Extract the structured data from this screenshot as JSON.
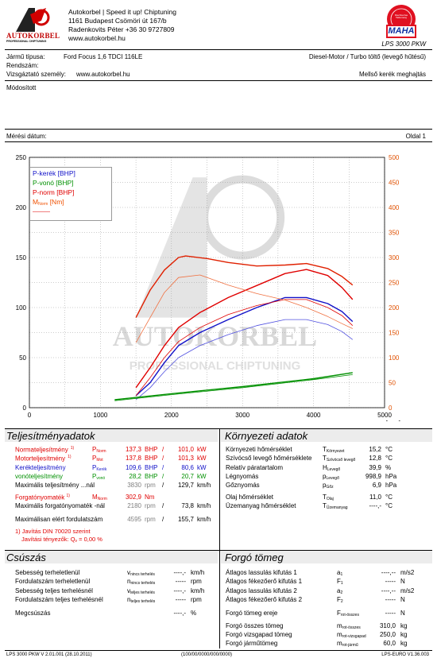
{
  "company": {
    "line1": "Autokorbel | Speed it up! Chiptuning",
    "line2": "1161 Budapest Csömöri út 167/b",
    "line3": "Radenkovits Péter +36 30 9727809",
    "line4": "www.autokorbel.hu",
    "logo_text": "AUTOKORBEL",
    "logo_sub": "PROFESSIONAL CHIPTUNING"
  },
  "brand": {
    "seal_text": "MAHA",
    "seal_ring": "Maschinenbau Haldenwang",
    "model": "LPS 3000 PKW"
  },
  "vehicle": {
    "type_label": "Jármű típusa:",
    "type_value": "Ford Focus 1,6 TDCI 116LE",
    "engine": "Diesel-Motor / Turbo töltő (levegő hűtésű)",
    "plate_label": "Rendszám:",
    "tester_label": "Vizsgáztató személy:",
    "tester_value": "www.autokorbel.hu",
    "drive": "Mellső kerék meghajtás",
    "modified": "Módosított",
    "date_label": "Mérési dátum:",
    "page": "Oldal 1"
  },
  "chart_data": {
    "type": "line",
    "xlabel": "n [rpm]",
    "xlim": [
      0,
      5000
    ],
    "xticks": [
      "0",
      "1000",
      "2000",
      "3000",
      "4000",
      "5000"
    ],
    "ylim_left": [
      0,
      250
    ],
    "yticks_left": [
      "0",
      "50",
      "100",
      "150",
      "200",
      "250"
    ],
    "ylim_right": [
      0,
      500
    ],
    "yticks_right": [
      "0",
      "50",
      "100",
      "150",
      "200",
      "250",
      "300",
      "350",
      "400",
      "450",
      "500"
    ],
    "legend": [
      {
        "label": "P-kerék [BHP]",
        "color": "#1010c8"
      },
      {
        "label": "P-vonó [BHP]",
        "color": "#009000"
      },
      {
        "label": "P-norm [BHP]",
        "color": "#e00000"
      },
      {
        "label": "M",
        "sub": "Norm",
        "unit": " [Nm]",
        "color": "#f05000"
      }
    ],
    "series": [
      {
        "name": "P-kerék [BHP]",
        "color": "#1010c8",
        "axis": "left",
        "x": [
          1500,
          1700,
          1900,
          2100,
          2400,
          2800,
          3200,
          3600,
          3900,
          4200,
          4400,
          4550
        ],
        "y": [
          12,
          25,
          45,
          62,
          75,
          88,
          100,
          110,
          110,
          104,
          96,
          86
        ]
      },
      {
        "name": "P-kerék [BHP] (base)",
        "color": "#5050e0",
        "axis": "left",
        "x": [
          1500,
          1700,
          1900,
          2100,
          2400,
          2800,
          3200,
          3600,
          3900,
          4200,
          4400,
          4550
        ],
        "y": [
          8,
          20,
          36,
          50,
          62,
          73,
          82,
          88,
          88,
          83,
          76,
          68
        ]
      },
      {
        "name": "P-vonó [BHP]",
        "color": "#009000",
        "axis": "left",
        "x": [
          1200,
          2000,
          3000,
          4000,
          4550
        ],
        "y": [
          8,
          14,
          21,
          29,
          35
        ]
      },
      {
        "name": "P-vonó [BHP] (base)",
        "color": "#009000",
        "axis": "left",
        "x": [
          1200,
          2000,
          3000,
          4000,
          4550
        ],
        "y": [
          7,
          13,
          20,
          28,
          33
        ]
      },
      {
        "name": "P-norm [BHP]",
        "color": "#e00000",
        "axis": "left",
        "x": [
          1500,
          1700,
          1900,
          2100,
          2400,
          2800,
          3200,
          3600,
          3900,
          4200,
          4400,
          4550
        ],
        "y": [
          20,
          40,
          62,
          80,
          95,
          110,
          122,
          134,
          138,
          132,
          120,
          108
        ]
      },
      {
        "name": "P-norm [BHP] (base)",
        "color": "#e00000",
        "axis": "left",
        "x": [
          1500,
          1700,
          1900,
          2100,
          2400,
          2800,
          3200,
          3600,
          3900,
          4200,
          4400,
          4550
        ],
        "y": [
          12,
          30,
          50,
          66,
          80,
          93,
          102,
          108,
          108,
          100,
          92,
          82
        ]
      },
      {
        "name": "M Norm [Nm]",
        "color": "#e02000",
        "axis": "right",
        "x": [
          1500,
          1700,
          1900,
          2100,
          2200,
          2500,
          2800,
          3200,
          3600,
          3900,
          4200,
          4400,
          4550
        ],
        "y": [
          180,
          235,
          275,
          300,
          303,
          298,
          290,
          283,
          285,
          288,
          278,
          262,
          245
        ]
      },
      {
        "name": "M Norm [Nm] (base)",
        "color": "#f07040",
        "axis": "right",
        "x": [
          1500,
          1700,
          1900,
          2100,
          2400,
          2800,
          3200,
          3600,
          3900,
          4200,
          4400,
          4550
        ],
        "y": [
          130,
          180,
          230,
          260,
          265,
          245,
          228,
          215,
          200,
          182,
          168,
          158
        ]
      }
    ]
  },
  "power": {
    "title": "Teljesítményadatok",
    "rows": [
      {
        "label": "Normateljesítmény",
        "sup": "1)",
        "sym": "P",
        "sub": "Norm",
        "v1": "137,3",
        "u1": "BHP",
        "v2": "101,0",
        "u2": "kW",
        "color": "red"
      },
      {
        "label": "Motorteljesítmény",
        "sup": "1)",
        "sym": "P",
        "sub": "Mot",
        "v1": "137,8",
        "u1": "BHP",
        "v2": "101,3",
        "u2": "kW",
        "color": "red"
      },
      {
        "label": "Kerékteljesítmény",
        "sup": "",
        "sym": "P",
        "sub": "Kerék",
        "v1": "109,6",
        "u1": "BHP",
        "v2": "80,6",
        "u2": "kW",
        "color": "blue"
      },
      {
        "label": "vonóteljesítmény",
        "sup": "",
        "sym": "P",
        "sub": "vonó",
        "v1": "28,2",
        "u1": "BHP",
        "v2": "20,7",
        "u2": "kW",
        "color": "green"
      },
      {
        "label": "Maximális teljesítmény ...nál",
        "sup": "",
        "sym": "",
        "sub": "",
        "v1": "3830",
        "u1": "rpm",
        "v2": "129,7",
        "u2": "km/h",
        "color": "black"
      }
    ],
    "torque": {
      "label": "Forgatónyomaték",
      "sup": "1)",
      "sym": "M",
      "sub": "Norm",
      "v1": "302,9",
      "u1": "Nm"
    },
    "torque_rows": [
      {
        "label": "Maximális forgatónyomaték -nál",
        "v1": "2180",
        "u1": "rpm",
        "v2": "73,8",
        "u2": "km/h"
      },
      {
        "label": "Maximálisan elért fordulatszám",
        "v1": "4595",
        "u1": "rpm",
        "v2": "155,7",
        "u2": "km/h"
      }
    ],
    "note1": "1) Javítás DIN 70020 szerint",
    "note2": "Javítási tényezők: Q",
    "note2_sub": "v",
    "note2_value": "=     0,00 %"
  },
  "env": {
    "title": "Környezeti adatok",
    "rows": [
      {
        "label": "Környezeti hőmérséklet",
        "sym": "T",
        "sub": "Környezet",
        "v": "15,2",
        "u": "°C"
      },
      {
        "label": "Szívócső levegő hőmérséklete",
        "sym": "T",
        "sub": "Szívócső levegő",
        "v": "12,8",
        "u": "°C"
      },
      {
        "label": "Relatív páratartalom",
        "sym": "H",
        "sub": "Levegő",
        "v": "39,9",
        "u": "%"
      },
      {
        "label": "Légnyomás",
        "sym": "p",
        "sub": "Levegő",
        "v": "998,9",
        "u": "hPa"
      },
      {
        "label": "Gőznyomás",
        "sym": "p",
        "sub": "Gőz",
        "v": "6,9",
        "u": "hPa"
      },
      {
        "label": "Olaj hőmérséklet",
        "sym": "T",
        "sub": "Olaj",
        "v": "11,0",
        "u": "°C"
      },
      {
        "label": "Üzemanyag hőmérséklet",
        "sym": "T",
        "sub": "Üzemanyag",
        "v": "----,-",
        "u": "°C"
      }
    ]
  },
  "slip": {
    "title": "Csúszás",
    "rows": [
      {
        "label": "Sebesség terheletlenül",
        "sym": "v",
        "sub": "nincs terhelés",
        "v": "----,-",
        "u": "km/h"
      },
      {
        "label": "Fordulatszám terheletlenül",
        "sym": "n",
        "sub": "nincs terhelés",
        "v": "-----",
        "u": "rpm"
      },
      {
        "label": "Sebesség teljes terhelésnél",
        "sym": "v",
        "sub": "teljes terhelés",
        "v": "----,-",
        "u": "km/h"
      },
      {
        "label": "Fordulatszám teljes terhelésnél",
        "sym": "n",
        "sub": "teljes terhelés",
        "v": "-----",
        "u": "rpm"
      },
      {
        "label": "Megcsúszás",
        "sym": "",
        "sub": "",
        "v": "----,-",
        "u": "%"
      }
    ]
  },
  "mass": {
    "title": "Forgó tömeg",
    "rows": [
      {
        "label": "Átlagos lassulás kifutás 1",
        "sym": "a",
        "sub": "1",
        "v": "----,--",
        "u": "m/s2"
      },
      {
        "label": "Átlagos fékezőerő kifutás 1",
        "sym": "F",
        "sub": "1",
        "v": "-----",
        "u": "N"
      },
      {
        "label": "Átlagos lassulás kifutás 2",
        "sym": "a",
        "sub": "2",
        "v": "----,--",
        "u": "m/s2"
      },
      {
        "label": "Átlagos fékezőerő kifutás 2",
        "sym": "F",
        "sub": "2",
        "v": "-----",
        "u": "N"
      },
      {
        "label": "Forgó tömeg ereje",
        "sym": "F",
        "sub": "rot-összes",
        "v": "-----",
        "u": "N"
      },
      {
        "label": "Forgó összes tömeg",
        "sym": "m",
        "sub": "rot-összes",
        "v": "310,0",
        "u": "kg"
      },
      {
        "label": "Forgó vizsgapad tömeg",
        "sym": "m",
        "sub": "rot-vizsgapad",
        "v": "250,0",
        "u": "kg"
      },
      {
        "label": "Forgó járműtömeg",
        "sym": "m",
        "sub": "rot-jármű",
        "v": "60,0",
        "u": "kg"
      }
    ]
  },
  "footer": {
    "left": "LPS 3000 PKW V 2.01.001 (28.10.2011)",
    "center": "(100/00/0000/000/0000)",
    "right": "LPS-EURO V1.36.003"
  },
  "watermark": {
    "text": "AUTOKORBEL",
    "sub": "PROFESSIONAL CHIPTUNING"
  }
}
